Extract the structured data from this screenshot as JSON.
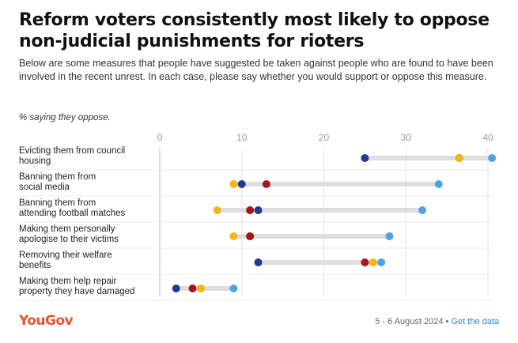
{
  "header": {
    "title": "Reform voters consistently most likely to oppose non-judicial punishments for rioters",
    "subtitle": "Below are some measures that people have suggested be taken against people who are found to have been involved in the recent unrest. In each case, please say whether you would support or oppose this measure.",
    "note": "% saying they oppose."
  },
  "footer": {
    "brand": "YouGov",
    "date": "5 - 6 August 2024",
    "separator": "•",
    "link": "Get the data"
  },
  "chart_data": {
    "type": "scatter",
    "subtype": "dot-range",
    "xlim": [
      0,
      40
    ],
    "ticks": [
      0,
      10,
      20,
      30,
      40
    ],
    "grid": true,
    "colors": {
      "dark_blue": "#1f3a93",
      "light_blue": "#4ea3e6",
      "red": "#a4161a",
      "yellow": "#f3b71c"
    },
    "categories": [
      [
        "Evicting them from council",
        "housing"
      ],
      [
        "Banning them from",
        "social media"
      ],
      [
        "Banning them from",
        "attending football matches"
      ],
      [
        "Making them personally",
        "apologise to their victims"
      ],
      [
        "Removing their welfare",
        "benefits"
      ],
      [
        "Making them help repair",
        "property they have damaged"
      ]
    ],
    "series": [
      {
        "color": "#1f3a93",
        "values": [
          25,
          10,
          12,
          11,
          12,
          2
        ]
      },
      {
        "color": "#a4161a",
        "values": [
          36.5,
          13,
          11,
          11,
          25,
          4
        ]
      },
      {
        "color": "#f3b71c",
        "values": [
          36.5,
          9,
          7,
          9,
          26,
          5
        ]
      },
      {
        "color": "#4ea3e6",
        "values": [
          40.5,
          34,
          32,
          28,
          27,
          9
        ]
      }
    ]
  }
}
